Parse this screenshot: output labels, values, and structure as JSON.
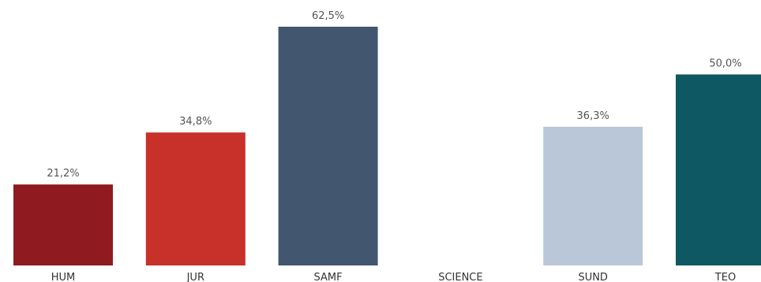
{
  "chart_data": {
    "type": "bar",
    "categories": [
      "HUM",
      "JUR",
      "SAMF",
      "SCIENCE",
      "SUND",
      "TEO"
    ],
    "values": [
      21.2,
      34.8,
      62.5,
      null,
      36.3,
      50.0
    ],
    "value_labels": [
      "21,2%",
      "34,8%",
      "62,5%",
      "",
      "36,3%",
      "50,0%"
    ],
    "colors": [
      "#8f1a1f",
      "#c8302a",
      "#42566f",
      "#ffffff",
      "#bac7d8",
      "#0d5862"
    ],
    "title": "",
    "xlabel": "",
    "ylabel": "",
    "ylim": [
      0,
      70
    ],
    "grid": false,
    "legend": "none"
  }
}
